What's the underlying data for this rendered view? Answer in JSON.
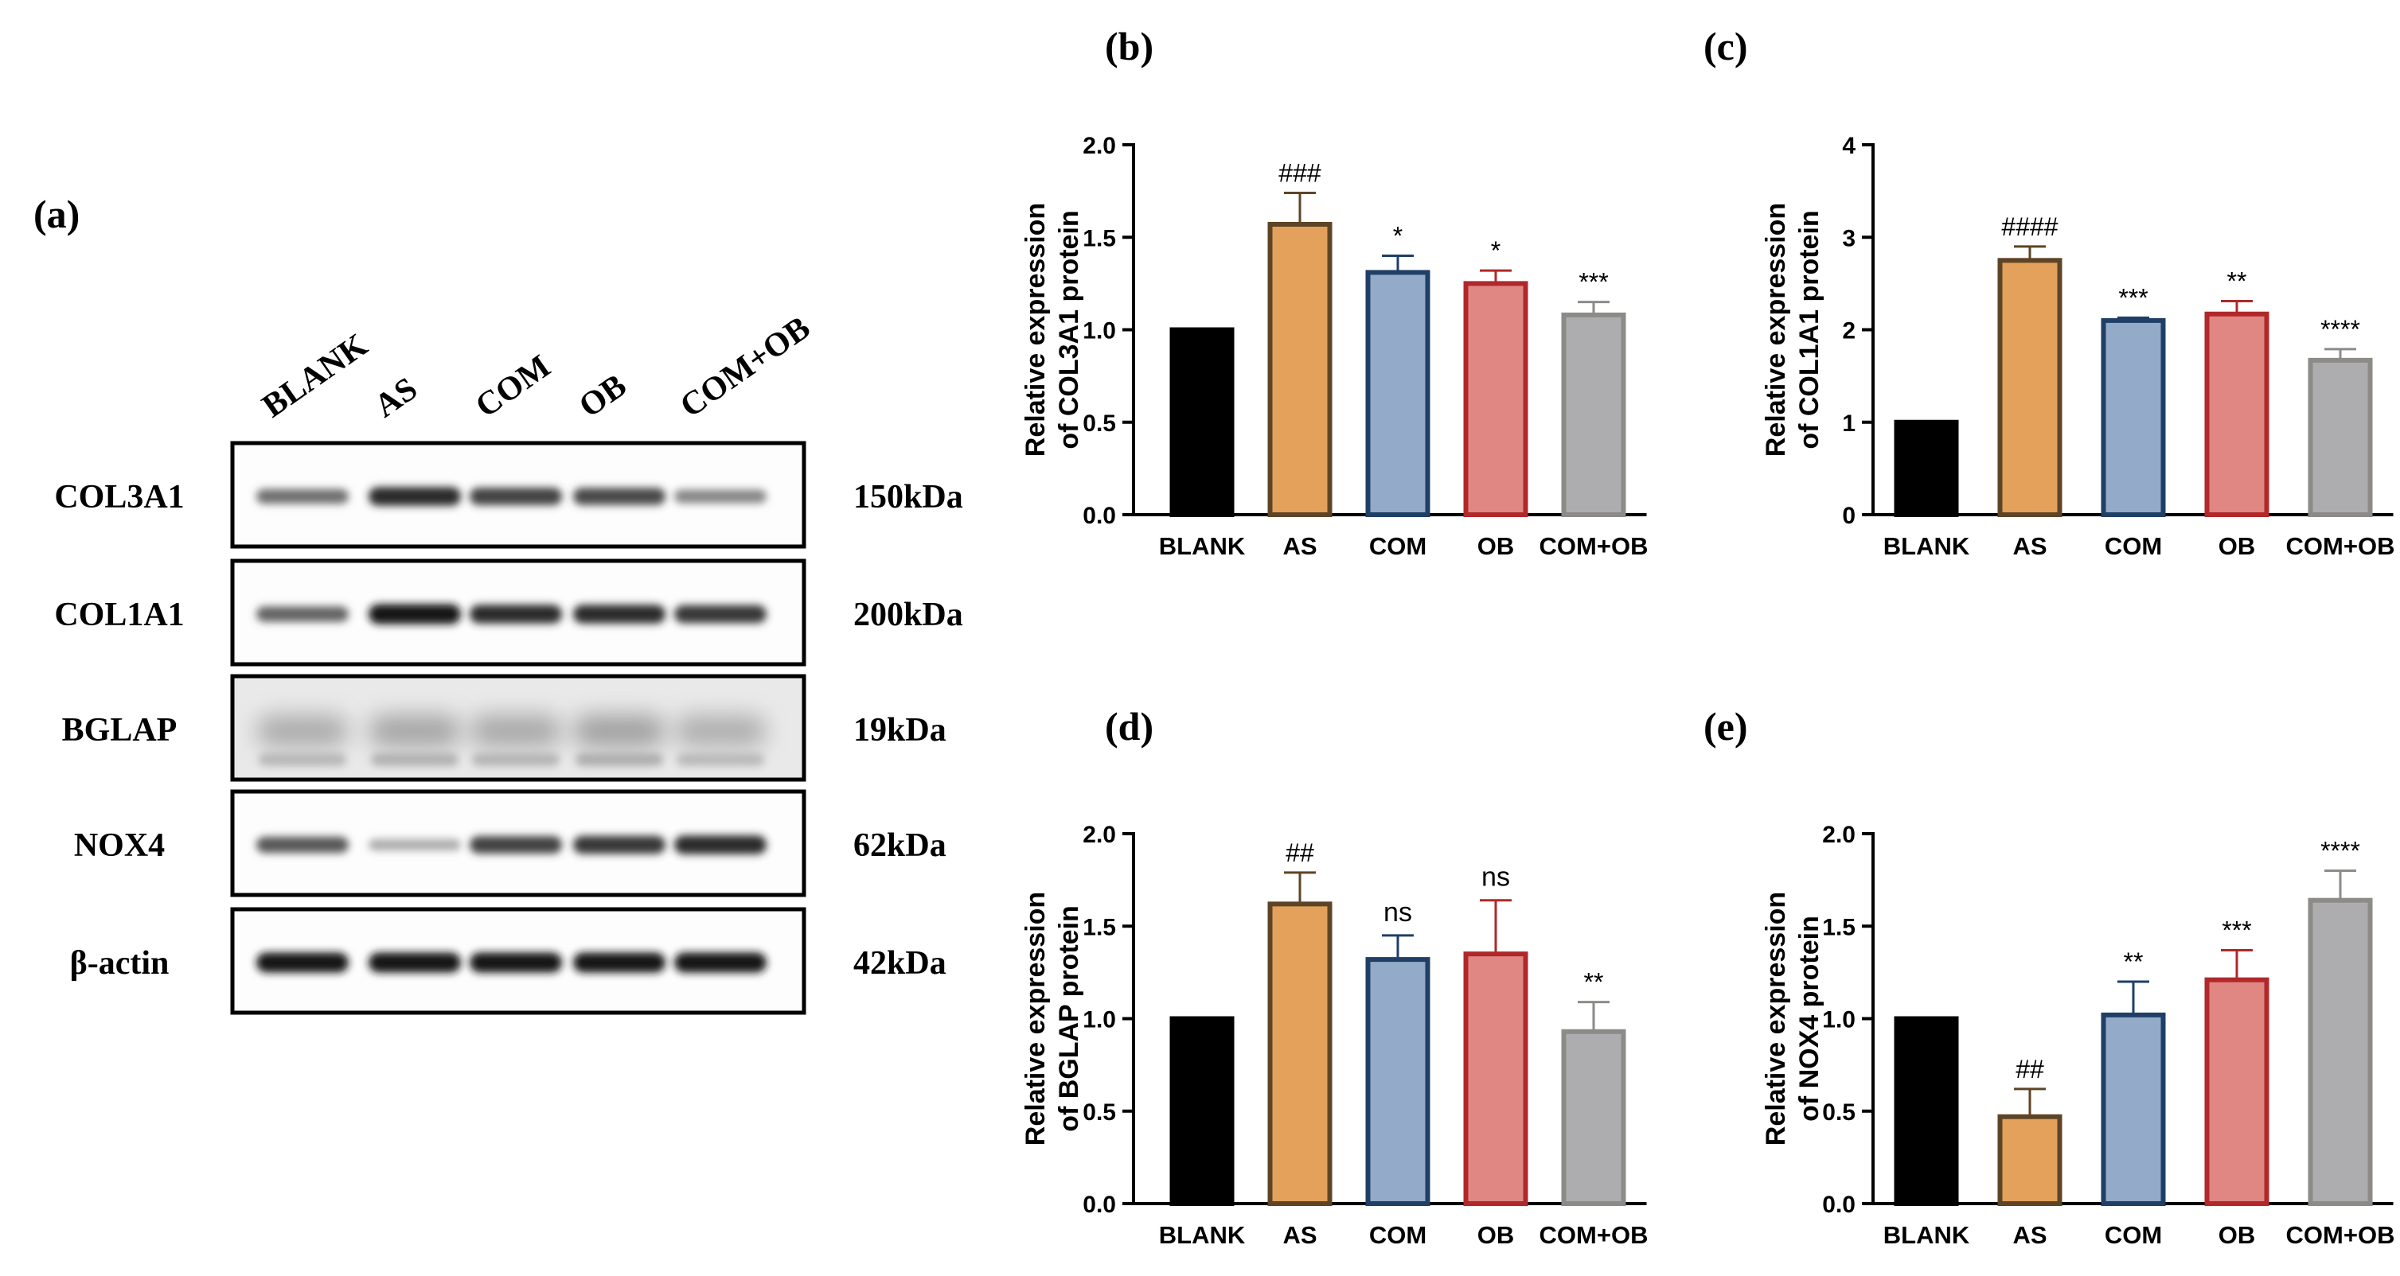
{
  "figure": {
    "colors": {
      "blank": "#000000",
      "as_fill": "#E3A15B",
      "as_stroke": "#5E4426",
      "com_fill": "#93AAC8",
      "com_stroke": "#1F3F66",
      "ob_fill": "#E08784",
      "ob_stroke": "#B0282A",
      "comob_fill": "#ADADAF",
      "comob_stroke": "#8C8B88"
    }
  },
  "panel_a": {
    "label": "(a)",
    "lanes": [
      "BLANK",
      "AS",
      "COM",
      "OB",
      "COM+OB"
    ],
    "blots": [
      {
        "protein": "COL3A1",
        "size": "150kDa",
        "intensity": [
          0.55,
          0.85,
          0.75,
          0.72,
          0.45
        ],
        "style": "clean"
      },
      {
        "protein": "COL1A1",
        "size": "200kDa",
        "intensity": [
          0.6,
          0.95,
          0.85,
          0.85,
          0.8
        ],
        "style": "clean"
      },
      {
        "protein": "BGLAP",
        "size": "19kDa",
        "intensity": [
          0.18,
          0.22,
          0.2,
          0.24,
          0.17
        ],
        "style": "faint"
      },
      {
        "protein": "NOX4",
        "size": "62kDa",
        "intensity": [
          0.65,
          0.28,
          0.75,
          0.8,
          0.85
        ],
        "style": "clean"
      },
      {
        "protein": "β-actin",
        "size": "42kDa",
        "intensity": [
          0.95,
          0.95,
          0.95,
          0.95,
          0.95
        ],
        "style": "clean"
      }
    ]
  },
  "chart_data": [
    {
      "panel": "(b)",
      "type": "bar",
      "categories": [
        "BLANK",
        "AS",
        "COM",
        "OB",
        "COM+OB"
      ],
      "values": [
        1.0,
        1.57,
        1.31,
        1.25,
        1.08
      ],
      "errors": [
        0,
        0.17,
        0.09,
        0.07,
        0.07
      ],
      "annotations": [
        "",
        "###",
        "*",
        "*",
        "***"
      ],
      "ylabel": [
        "Relative expression",
        "of COL3A1 protein"
      ],
      "ylim": [
        0,
        2.0
      ],
      "ticks": [
        0.0,
        0.5,
        1.0,
        1.5,
        2.0
      ],
      "tick_labels": [
        "0.0",
        "0.5",
        "1.0",
        "1.5",
        "2.0"
      ]
    },
    {
      "panel": "(c)",
      "type": "bar",
      "categories": [
        "BLANK",
        "AS",
        "COM",
        "OB",
        "COM+OB"
      ],
      "values": [
        1.0,
        2.75,
        2.1,
        2.17,
        1.67
      ],
      "errors": [
        0,
        0.15,
        0.03,
        0.14,
        0.12
      ],
      "annotations": [
        "",
        "####",
        "***",
        "**",
        "****"
      ],
      "ylabel": [
        "Relative expression",
        "of COL1A1 protein"
      ],
      "ylim": [
        0,
        4
      ],
      "ticks": [
        0,
        1,
        2,
        3,
        4
      ],
      "tick_labels": [
        "0",
        "1",
        "2",
        "3",
        "4"
      ]
    },
    {
      "panel": "(d)",
      "type": "bar",
      "categories": [
        "BLANK",
        "AS",
        "COM",
        "OB",
        "COM+OB"
      ],
      "values": [
        1.0,
        1.62,
        1.32,
        1.35,
        0.93
      ],
      "errors": [
        0,
        0.17,
        0.13,
        0.29,
        0.16
      ],
      "annotations": [
        "",
        "##",
        "ns",
        "ns",
        "**"
      ],
      "ylabel": [
        "Relative expression",
        "of BGLAP protein"
      ],
      "ylim": [
        0,
        2.0
      ],
      "ticks": [
        0.0,
        0.5,
        1.0,
        1.5,
        2.0
      ],
      "tick_labels": [
        "0.0",
        "0.5",
        "1.0",
        "1.5",
        "2.0"
      ]
    },
    {
      "panel": "(e)",
      "type": "bar",
      "categories": [
        "BLANK",
        "AS",
        "COM",
        "OB",
        "COM+OB"
      ],
      "values": [
        1.0,
        0.47,
        1.02,
        1.21,
        1.64
      ],
      "errors": [
        0,
        0.15,
        0.18,
        0.16,
        0.16
      ],
      "annotations": [
        "",
        "##",
        "**",
        "***",
        "****"
      ],
      "ylabel": [
        "Relative expression",
        "of NOX4 protein"
      ],
      "ylim": [
        0,
        2.0
      ],
      "ticks": [
        0.0,
        0.5,
        1.0,
        1.5,
        2.0
      ],
      "tick_labels": [
        "0.0",
        "0.5",
        "1.0",
        "1.5",
        "2.0"
      ]
    }
  ]
}
